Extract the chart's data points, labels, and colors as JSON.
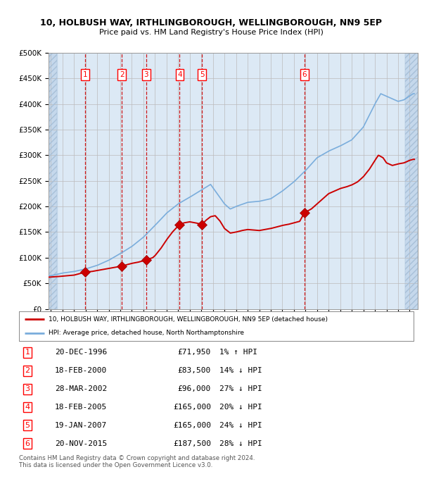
{
  "title1": "10, HOLBUSH WAY, IRTHLINGBOROUGH, WELLINGBOROUGH, NN9 5EP",
  "title2": "Price paid vs. HM Land Registry's House Price Index (HPI)",
  "bg_color": "#dce9f5",
  "hatch_color": "#c0cfe0",
  "grid_color": "#bbbbbb",
  "red_line_color": "#cc0000",
  "blue_line_color": "#7aaddc",
  "sale_marker_color": "#cc0000",
  "vline_color": "#cc0000",
  "ylim": [
    0,
    500000
  ],
  "yticks": [
    0,
    50000,
    100000,
    150000,
    200000,
    250000,
    300000,
    350000,
    400000,
    450000,
    500000
  ],
  "ytick_labels": [
    "£0",
    "£50K",
    "£100K",
    "£150K",
    "£200K",
    "£250K",
    "£300K",
    "£350K",
    "£400K",
    "£450K",
    "£500K"
  ],
  "xlim_start": 1993.8,
  "xlim_end": 2025.7,
  "sale_dates_x": [
    1996.97,
    2000.13,
    2002.24,
    2005.13,
    2007.05,
    2015.9
  ],
  "sale_prices_y": [
    71950,
    83500,
    96000,
    165000,
    165000,
    187500
  ],
  "sale_labels": [
    "1",
    "2",
    "3",
    "4",
    "5",
    "6"
  ],
  "legend_label_red": "10, HOLBUSH WAY, IRTHLINGBOROUGH, WELLINGBOROUGH, NN9 5EP (detached house)",
  "legend_label_blue": "HPI: Average price, detached house, North Northamptonshire",
  "table_rows": [
    [
      "1",
      "20-DEC-1996",
      "£71,950",
      "1% ↑ HPI"
    ],
    [
      "2",
      "18-FEB-2000",
      "£83,500",
      "14% ↓ HPI"
    ],
    [
      "3",
      "28-MAR-2002",
      "£96,000",
      "27% ↓ HPI"
    ],
    [
      "4",
      "18-FEB-2005",
      "£165,000",
      "20% ↓ HPI"
    ],
    [
      "5",
      "19-JAN-2007",
      "£165,000",
      "24% ↓ HPI"
    ],
    [
      "6",
      "20-NOV-2015",
      "£187,500",
      "28% ↓ HPI"
    ]
  ],
  "footer_text": "Contains HM Land Registry data © Crown copyright and database right 2024.\nThis data is licensed under the Open Government Licence v3.0."
}
